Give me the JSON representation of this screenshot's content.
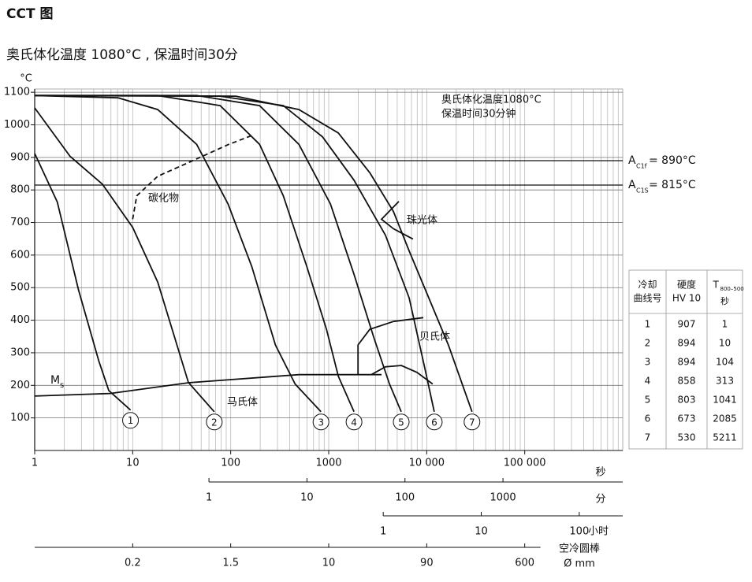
{
  "chart_data": {
    "type": "cct",
    "title": "CCT 图",
    "subtitle": "奥氏体化温度 1080°C , 保温时间30分",
    "y_unit": "°C",
    "x_unit": "秒",
    "x_log": true,
    "xlim": [
      1,
      1000000
    ],
    "ylim": [
      0,
      1110
    ],
    "xticks": [
      1,
      10,
      100,
      1000,
      {
        "value": 10000,
        "label": "10 000"
      },
      {
        "value": 100000,
        "label": "100 000"
      }
    ],
    "yticks": [
      100,
      200,
      300,
      400,
      500,
      600,
      700,
      800,
      900,
      1000,
      1100
    ],
    "grid": true,
    "minor_grid": true,
    "color": "#111111",
    "series": [
      {
        "name": "1",
        "x": [
          1,
          1.7,
          2.8,
          4.5,
          5.7,
          9.5
        ],
        "y": [
          912,
          763,
          493,
          276,
          184,
          124
        ]
      },
      {
        "name": "2",
        "x": [
          1,
          2.3,
          4.9,
          10,
          18,
          37,
          68
        ],
        "y": [
          1052,
          903,
          818,
          685,
          517,
          209,
          119
        ]
      },
      {
        "name": "3",
        "x": [
          1,
          7.1,
          18,
          45,
          94,
          164,
          286,
          454,
          834
        ],
        "y": [
          1090,
          1083,
          1047,
          940,
          757,
          565,
          324,
          204,
          119
        ]
      },
      {
        "name": "4",
        "x": [
          1,
          18,
          78,
          197,
          344,
          598,
          949,
          1253,
          1813
        ],
        "y": [
          1090,
          1090,
          1059,
          940,
          782,
          565,
          372,
          228,
          119
        ]
      },
      {
        "name": "5",
        "x": [
          1,
          45,
          197,
          497,
          1042,
          1813,
          2877,
          4170,
          5495
        ],
        "y": [
          1090,
          1090,
          1059,
          940,
          757,
          541,
          348,
          204,
          119
        ]
      },
      {
        "name": "6",
        "x": [
          1,
          78,
          344,
          865,
          1813,
          3795,
          6607,
          9570,
          11940
        ],
        "y": [
          1090,
          1088,
          1059,
          963,
          830,
          661,
          469,
          252,
          119
        ]
      },
      {
        "name": "7",
        "x": [
          1,
          113,
          497,
          1253,
          2624,
          4571,
          6607,
          10490,
          16640,
          28970
        ],
        "y": [
          1090,
          1088,
          1047,
          975,
          853,
          734,
          613,
          469,
          324,
          119
        ]
      }
    ],
    "boundaries": [
      {
        "name": "碳化物",
        "dashed": true,
        "x": [
          10,
          11,
          18,
          41,
          94,
          164
        ],
        "y": [
          710,
          782,
          842,
          890,
          939,
          967
        ]
      },
      {
        "name": "珠光体",
        "x": [
          5200,
          3460,
          4571,
          7244
        ],
        "y": [
          765,
          710,
          681,
          649
        ]
      },
      {
        "name": "贝氏体",
        "x": [
          1990,
          1990,
          2624,
          4571,
          9230
        ],
        "y": [
          233,
          324,
          372,
          396,
          408
        ]
      },
      {
        "x": [
          2724,
          3795,
          5495,
          7940,
          11510
        ],
        "y": [
          233,
          257,
          261,
          240,
          204
        ]
      },
      {
        "symbol": "M",
        "subscript": "s",
        "x": [
          1,
          5.9,
          37,
          497,
          3460
        ],
        "y": [
          167,
          175,
          208,
          233,
          233
        ]
      }
    ],
    "critical_lines": [
      {
        "value": 890,
        "symbol": "A",
        "subscript": "C1f",
        "label": "= 890°C"
      },
      {
        "value": 815,
        "symbol": "A",
        "subscript": "C1S",
        "label": "= 815°C"
      }
    ],
    "annotations": [
      "奥氏体化温度1080°C",
      "保温时间30分钟",
      "马氏体"
    ],
    "secondary_axes": [
      {
        "unit": "分",
        "ticks": [
          {
            "value": 1,
            "x": 60
          },
          {
            "value": 10,
            "x": 600
          },
          {
            "value": 100,
            "x": 6000
          },
          {
            "value": 1000,
            "x": 60000
          }
        ]
      },
      {
        "unit": "小时",
        "ticks": [
          {
            "value": 1,
            "x": 3600
          },
          {
            "value": 10,
            "x": 36000
          },
          {
            "value": 100,
            "x": 360000
          }
        ]
      },
      {
        "unit": "空冷圆棒",
        "unit2": "Ø mm",
        "ticks": [
          {
            "value": 0.2,
            "x": 10
          },
          {
            "value": 1.5,
            "x": 100
          },
          {
            "value": 10,
            "x": 1000
          },
          {
            "value": 90,
            "x": 10000
          },
          {
            "value": 600,
            "x": 100000
          }
        ]
      }
    ]
  },
  "table": {
    "headers": [
      [
        "冷却",
        "曲线号"
      ],
      [
        "硬度",
        "HV 10"
      ],
      {
        "main": "T",
        "sub": "800–500",
        "unit": "秒"
      }
    ],
    "rows": [
      [
        "1",
        907,
        1
      ],
      [
        "2",
        894,
        10
      ],
      [
        "3",
        894,
        104
      ],
      [
        "4",
        858,
        313
      ],
      [
        "5",
        803,
        1041
      ],
      [
        "6",
        673,
        2085
      ],
      [
        "7",
        530,
        5211
      ]
    ]
  }
}
